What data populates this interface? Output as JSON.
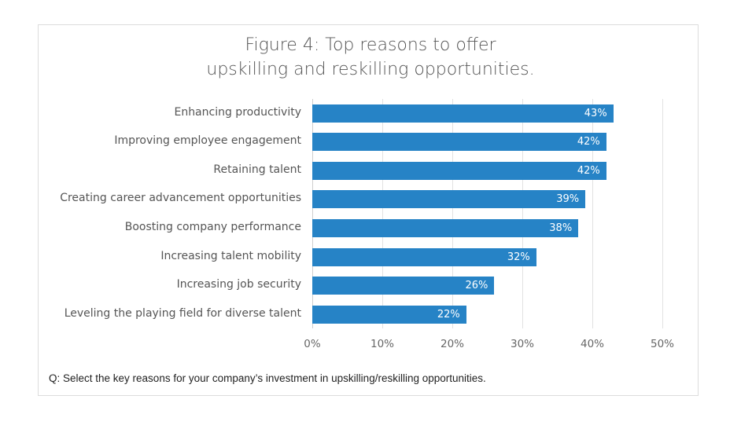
{
  "title": {
    "line1": "Figure 4:  Top reasons to offer",
    "line2": "upskilling and reskilling opportunities."
  },
  "footnote": "Q: Select the key reasons for your company’s investment in upskilling/reskilling opportunities.",
  "colors": {
    "bar": "#2683c6",
    "text": "#555555",
    "grid": "#e2e2e2"
  },
  "chart_data": {
    "type": "bar",
    "orientation": "horizontal",
    "title": "Figure 4: Top reasons to offer upskilling and reskilling opportunities.",
    "categories": [
      "Enhancing productivity",
      "Improving employee engagement",
      "Retaining talent",
      "Creating career advancement opportunities",
      "Boosting company performance",
      "Increasing talent mobility",
      "Increasing job security",
      "Leveling the playing field for diverse talent"
    ],
    "values": [
      43,
      42,
      42,
      39,
      38,
      32,
      26,
      22
    ],
    "value_labels": [
      "43%",
      "42%",
      "42%",
      "39%",
      "38%",
      "32%",
      "26%",
      "22%"
    ],
    "xlabel": "",
    "ylabel": "",
    "xlim": [
      0,
      50
    ],
    "xticks": [
      "0%",
      "10%",
      "20%",
      "30%",
      "40%",
      "50%"
    ],
    "grid": true,
    "legend": "none"
  }
}
